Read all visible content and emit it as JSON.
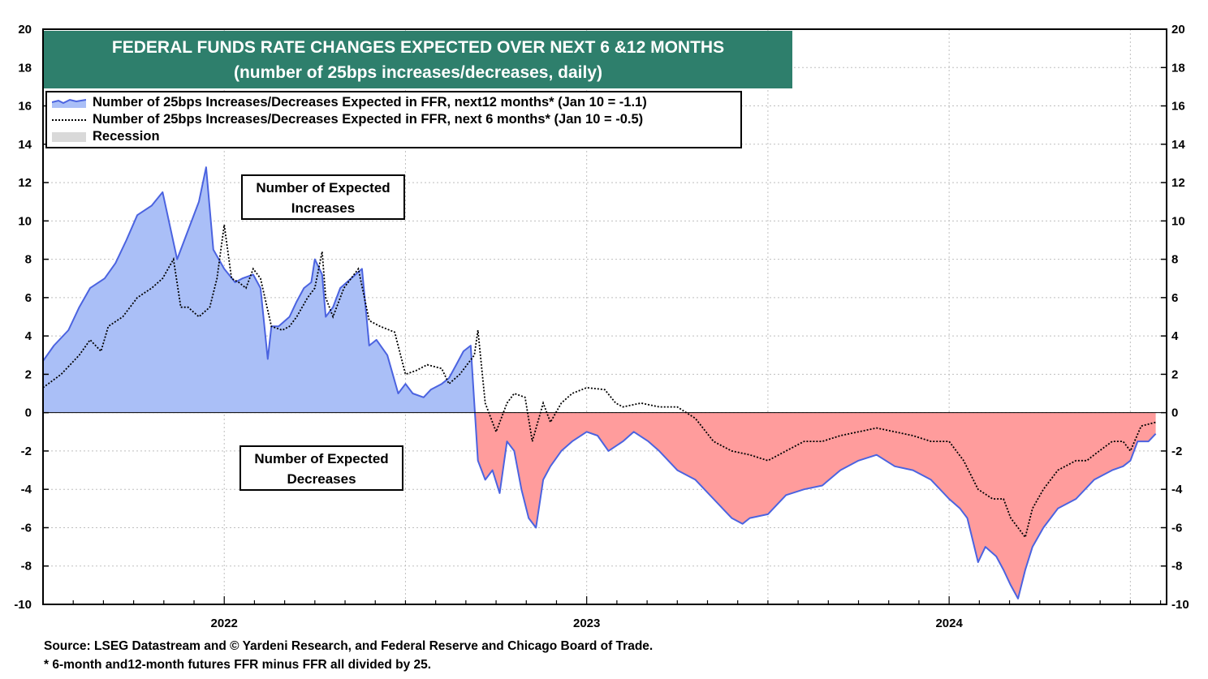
{
  "chart_data": {
    "type": "area",
    "title": "FEDERAL FUNDS RATE CHANGES EXPECTED OVER NEXT 6 &12 MONTHS",
    "subtitle": "(number of 25bps increases/decreases, daily)",
    "xlabel": "",
    "ylabel": "",
    "ylim": [
      -10,
      20
    ],
    "yticks": [
      20,
      18,
      16,
      14,
      12,
      10,
      8,
      6,
      4,
      2,
      0,
      -2,
      -4,
      -6,
      -8,
      -10
    ],
    "xlim": [
      2021.5,
      2024.6
    ],
    "xticks": [
      {
        "label": "2022",
        "value": 2022.0
      },
      {
        "label": "2023",
        "value": 2023.0
      },
      {
        "label": "2024",
        "value": 2024.0
      }
    ],
    "legend": [
      "Number of 25bps Increases/Decreases Expected in FFR, next12 months* (Jan 10 = -1.1)",
      "Number of 25bps Increases/Decreases Expected in FFR, next 6 months* (Jan 10 = -0.5)",
      "Recession"
    ],
    "series": [
      {
        "name": "Number of 25bps Increases/Decreases Expected in FFR, next12 months*",
        "style": "area",
        "color_positive": "#aabff7",
        "color_negative": "#ff9c9c",
        "line_color": "#4b63e0",
        "x": [
          2021.5,
          2021.53,
          2021.57,
          2021.6,
          2021.63,
          2021.67,
          2021.7,
          2021.73,
          2021.76,
          2021.8,
          2021.83,
          2021.87,
          2021.9,
          2021.93,
          2021.95,
          2021.97,
          2022.0,
          2022.03,
          2022.05,
          2022.08,
          2022.1,
          2022.12,
          2022.13,
          2022.15,
          2022.18,
          2022.2,
          2022.22,
          2022.24,
          2022.25,
          2022.27,
          2022.28,
          2022.3,
          2022.32,
          2022.35,
          2022.38,
          2022.4,
          2022.42,
          2022.45,
          2022.48,
          2022.5,
          2022.52,
          2022.55,
          2022.57,
          2022.6,
          2022.62,
          2022.64,
          2022.66,
          2022.68,
          2022.7,
          2022.72,
          2022.74,
          2022.76,
          2022.78,
          2022.8,
          2022.82,
          2022.84,
          2022.86,
          2022.88,
          2022.9,
          2022.93,
          2022.96,
          2023.0,
          2023.03,
          2023.06,
          2023.1,
          2023.13,
          2023.17,
          2023.2,
          2023.25,
          2023.3,
          2023.35,
          2023.4,
          2023.43,
          2023.45,
          2023.5,
          2023.55,
          2023.6,
          2023.65,
          2023.7,
          2023.75,
          2023.8,
          2023.85,
          2023.9,
          2023.95,
          2024.0,
          2024.03,
          2024.05,
          2024.08,
          2024.1,
          2024.13,
          2024.15,
          2024.17,
          2024.19,
          2024.21,
          2024.23,
          2024.26,
          2024.3,
          2024.35,
          2024.4,
          2024.45,
          2024.48,
          2024.5,
          2024.52,
          2024.55,
          2024.57
        ],
        "values": [
          2.7,
          3.5,
          4.3,
          5.5,
          6.5,
          7.0,
          7.8,
          9.0,
          10.3,
          10.8,
          11.5,
          8.0,
          9.5,
          11.0,
          12.8,
          8.5,
          7.5,
          6.8,
          7.0,
          7.2,
          6.5,
          2.8,
          4.5,
          4.5,
          5.0,
          5.8,
          6.5,
          6.8,
          8.0,
          7.2,
          5.0,
          5.5,
          6.5,
          7.0,
          7.5,
          3.5,
          3.8,
          3.0,
          1.0,
          1.5,
          1.0,
          0.8,
          1.2,
          1.5,
          1.8,
          2.5,
          3.2,
          3.5,
          -2.5,
          -3.5,
          -3.0,
          -4.2,
          -1.5,
          -2.0,
          -4.0,
          -5.5,
          -6.0,
          -3.5,
          -2.8,
          -2.0,
          -1.5,
          -1.0,
          -1.2,
          -2.0,
          -1.5,
          -1.0,
          -1.5,
          -2.0,
          -3.0,
          -3.5,
          -4.5,
          -5.5,
          -5.8,
          -5.5,
          -5.3,
          -4.3,
          -4.0,
          -3.8,
          -3.0,
          -2.5,
          -2.2,
          -2.8,
          -3.0,
          -3.5,
          -4.5,
          -5.0,
          -5.5,
          -7.8,
          -7.0,
          -7.5,
          -8.2,
          -9.0,
          -9.7,
          -8.2,
          -7.0,
          -6.0,
          -5.0,
          -4.5,
          -3.5,
          -3.0,
          -2.8,
          -2.5,
          -1.5,
          -1.5,
          -1.1
        ]
      },
      {
        "name": "Number of 25bps Increases/Decreases Expected in FFR, next 6 months*",
        "style": "dotted",
        "color": "#000000",
        "x": [
          2021.5,
          2021.55,
          2021.6,
          2021.63,
          2021.66,
          2021.68,
          2021.72,
          2021.76,
          2021.8,
          2021.83,
          2021.86,
          2021.88,
          2021.9,
          2021.93,
          2021.96,
          2021.98,
          2022.0,
          2022.02,
          2022.04,
          2022.06,
          2022.08,
          2022.1,
          2022.13,
          2022.16,
          2022.18,
          2022.2,
          2022.23,
          2022.25,
          2022.27,
          2022.28,
          2022.3,
          2022.33,
          2022.35,
          2022.37,
          2022.4,
          2022.43,
          2022.47,
          2022.5,
          2022.53,
          2022.56,
          2022.6,
          2022.62,
          2022.65,
          2022.67,
          2022.69,
          2022.7,
          2022.72,
          2022.75,
          2022.78,
          2022.8,
          2022.83,
          2022.85,
          2022.88,
          2022.9,
          2022.93,
          2022.96,
          2023.0,
          2023.05,
          2023.08,
          2023.1,
          2023.15,
          2023.2,
          2023.25,
          2023.3,
          2023.35,
          2023.4,
          2023.45,
          2023.5,
          2023.55,
          2023.6,
          2023.65,
          2023.7,
          2023.75,
          2023.8,
          2023.85,
          2023.9,
          2023.95,
          2024.0,
          2024.04,
          2024.08,
          2024.12,
          2024.15,
          2024.17,
          2024.19,
          2024.21,
          2024.23,
          2024.26,
          2024.3,
          2024.35,
          2024.38,
          2024.4,
          2024.45,
          2024.48,
          2024.5,
          2024.53,
          2024.57
        ],
        "values": [
          1.3,
          2.0,
          3.0,
          3.8,
          3.2,
          4.5,
          5.0,
          6.0,
          6.5,
          7.0,
          8.0,
          5.5,
          5.5,
          5.0,
          5.5,
          7.0,
          9.8,
          7.0,
          6.8,
          6.5,
          7.5,
          7.0,
          4.5,
          4.3,
          4.5,
          5.0,
          6.0,
          6.5,
          8.4,
          6.0,
          5.0,
          6.5,
          7.0,
          7.5,
          4.8,
          4.5,
          4.2,
          2.0,
          2.2,
          2.5,
          2.3,
          1.5,
          2.0,
          2.5,
          3.0,
          4.3,
          0.5,
          -1.0,
          0.5,
          1.0,
          0.8,
          -1.5,
          0.5,
          -0.5,
          0.5,
          1.0,
          1.3,
          1.2,
          0.5,
          0.3,
          0.5,
          0.3,
          0.3,
          -0.3,
          -1.5,
          -2.0,
          -2.2,
          -2.5,
          -2.0,
          -1.5,
          -1.5,
          -1.2,
          -1.0,
          -0.8,
          -1.0,
          -1.2,
          -1.5,
          -1.5,
          -2.5,
          -4.0,
          -4.5,
          -4.5,
          -5.5,
          -6.0,
          -6.5,
          -5.0,
          -4.0,
          -3.0,
          -2.5,
          -2.5,
          -2.2,
          -1.5,
          -1.5,
          -2.0,
          -0.7,
          -0.5
        ]
      }
    ],
    "annotations": [
      {
        "id": "increases",
        "lines": [
          "Number of Expected",
          "Increases"
        ]
      },
      {
        "id": "decreases",
        "lines": [
          "Number of Expected",
          "Decreases"
        ]
      }
    ]
  },
  "source_lines": [
    "Source: LSEG Datastream and © Yardeni Research, and Federal Reserve and Chicago Board of Trade.",
    "* 6-month and12-month futures FFR minus FFR all divided by 25."
  ]
}
